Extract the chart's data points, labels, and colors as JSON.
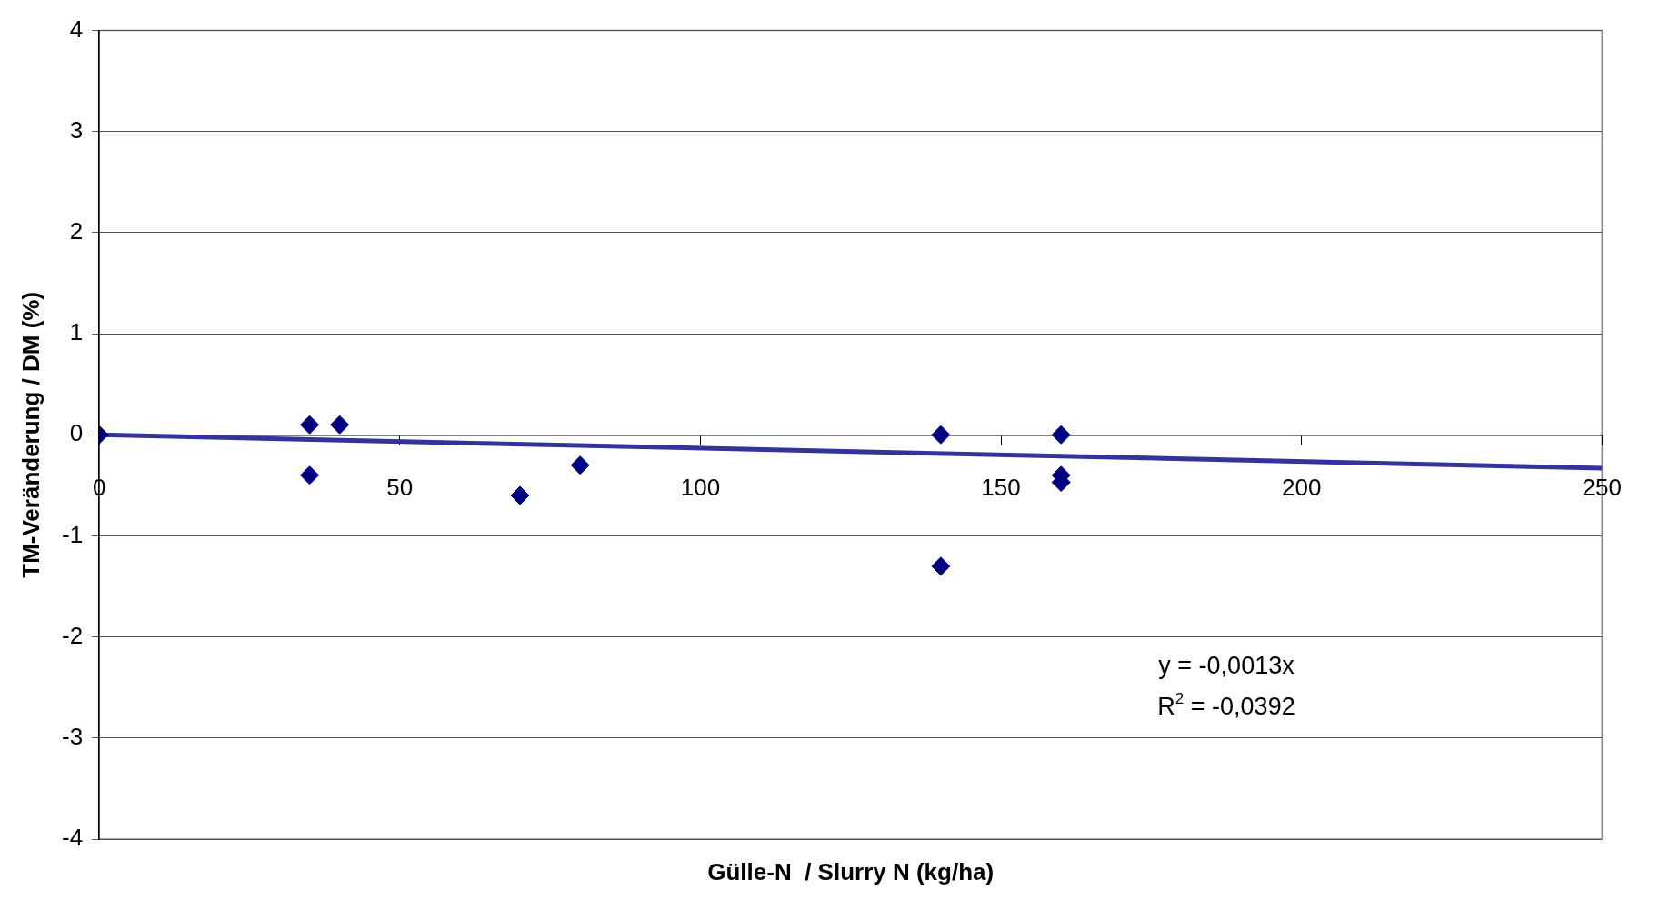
{
  "chart_data": {
    "type": "scatter",
    "xlabel": "Gülle-N  / Slurry N (kg/ha)",
    "ylabel": "TM-Veränderung / DM (%)",
    "xlim": [
      0,
      250
    ],
    "xticks": [
      0,
      50,
      100,
      150,
      200,
      250
    ],
    "ylim": [
      -4,
      4
    ],
    "yticks": [
      -4,
      -3,
      -2,
      -1,
      0,
      1,
      2,
      3,
      4
    ],
    "grid": "y",
    "legend": false,
    "marker": "diamond",
    "series": [
      {
        "type": "scatter",
        "color": "#000080",
        "x": [
          0,
          35,
          35,
          40,
          70,
          80,
          140,
          140,
          160,
          160,
          160
        ],
        "values": [
          0,
          0.1,
          -0.4,
          0.1,
          -0.6,
          -0.3,
          0,
          -1.3,
          0,
          -0.4,
          -0.47
        ]
      },
      {
        "type": "line",
        "color": "#333399",
        "x": [
          0,
          250
        ],
        "values": [
          0,
          -0.33
        ],
        "marker": "none",
        "line_style": "solid"
      }
    ],
    "annotations": [
      "y = -0,0013x",
      "R$^{2}$ = -0,0392"
    ]
  }
}
